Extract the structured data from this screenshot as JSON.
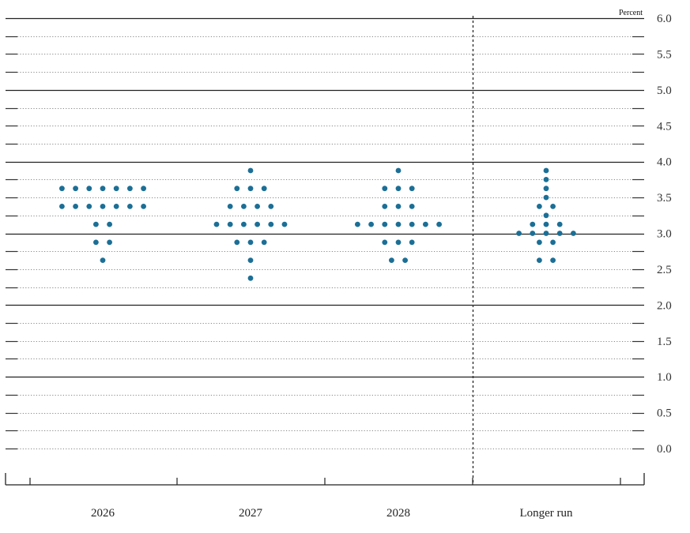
{
  "chart_data": {
    "type": "scatter",
    "subtype": "dot_plot",
    "title": "",
    "unit_label": "Percent",
    "xlabel": "",
    "ylabel": "Percent",
    "ylim": [
      0.0,
      6.0
    ],
    "y_tick_labels": [
      "0.0",
      "0.5",
      "1.0",
      "1.5",
      "2.0",
      "2.5",
      "3.0",
      "3.5",
      "4.0",
      "4.5",
      "5.0",
      "5.5",
      "6.0"
    ],
    "y_ticks": [
      0.0,
      0.5,
      1.0,
      1.5,
      2.0,
      2.5,
      3.0,
      3.5,
      4.0,
      4.5,
      5.0,
      5.5,
      6.0
    ],
    "minor_gridline_step": 0.125,
    "solid_gridlines_at": [
      1.0,
      2.0,
      3.0,
      4.0,
      5.0,
      6.0
    ],
    "grid": true,
    "legend": null,
    "categories": [
      "2026",
      "2027",
      "2028",
      "Longer run"
    ],
    "separator_before": "Longer run",
    "dot_color": "#1b6f96",
    "series": [
      {
        "name": "2026",
        "points": [
          {
            "value": 3.625,
            "count": 7
          },
          {
            "value": 3.375,
            "count": 7
          },
          {
            "value": 3.125,
            "count": 2
          },
          {
            "value": 2.875,
            "count": 2
          },
          {
            "value": 2.625,
            "count": 1
          }
        ]
      },
      {
        "name": "2027",
        "points": [
          {
            "value": 3.875,
            "count": 1
          },
          {
            "value": 3.625,
            "count": 3
          },
          {
            "value": 3.375,
            "count": 4
          },
          {
            "value": 3.125,
            "count": 6
          },
          {
            "value": 2.875,
            "count": 3
          },
          {
            "value": 2.625,
            "count": 1
          },
          {
            "value": 2.375,
            "count": 1
          }
        ]
      },
      {
        "name": "2028",
        "points": [
          {
            "value": 3.875,
            "count": 1
          },
          {
            "value": 3.625,
            "count": 3
          },
          {
            "value": 3.375,
            "count": 3
          },
          {
            "value": 3.125,
            "count": 7
          },
          {
            "value": 2.875,
            "count": 3
          },
          {
            "value": 2.625,
            "count": 2
          }
        ]
      },
      {
        "name": "Longer run",
        "points": [
          {
            "value": 3.875,
            "count": 1
          },
          {
            "value": 3.75,
            "count": 1
          },
          {
            "value": 3.625,
            "count": 1
          },
          {
            "value": 3.5,
            "count": 1
          },
          {
            "value": 3.375,
            "count": 2
          },
          {
            "value": 3.25,
            "count": 1
          },
          {
            "value": 3.125,
            "count": 3
          },
          {
            "value": 3.0,
            "count": 5
          },
          {
            "value": 2.875,
            "count": 2
          },
          {
            "value": 2.625,
            "count": 2
          }
        ]
      }
    ]
  }
}
